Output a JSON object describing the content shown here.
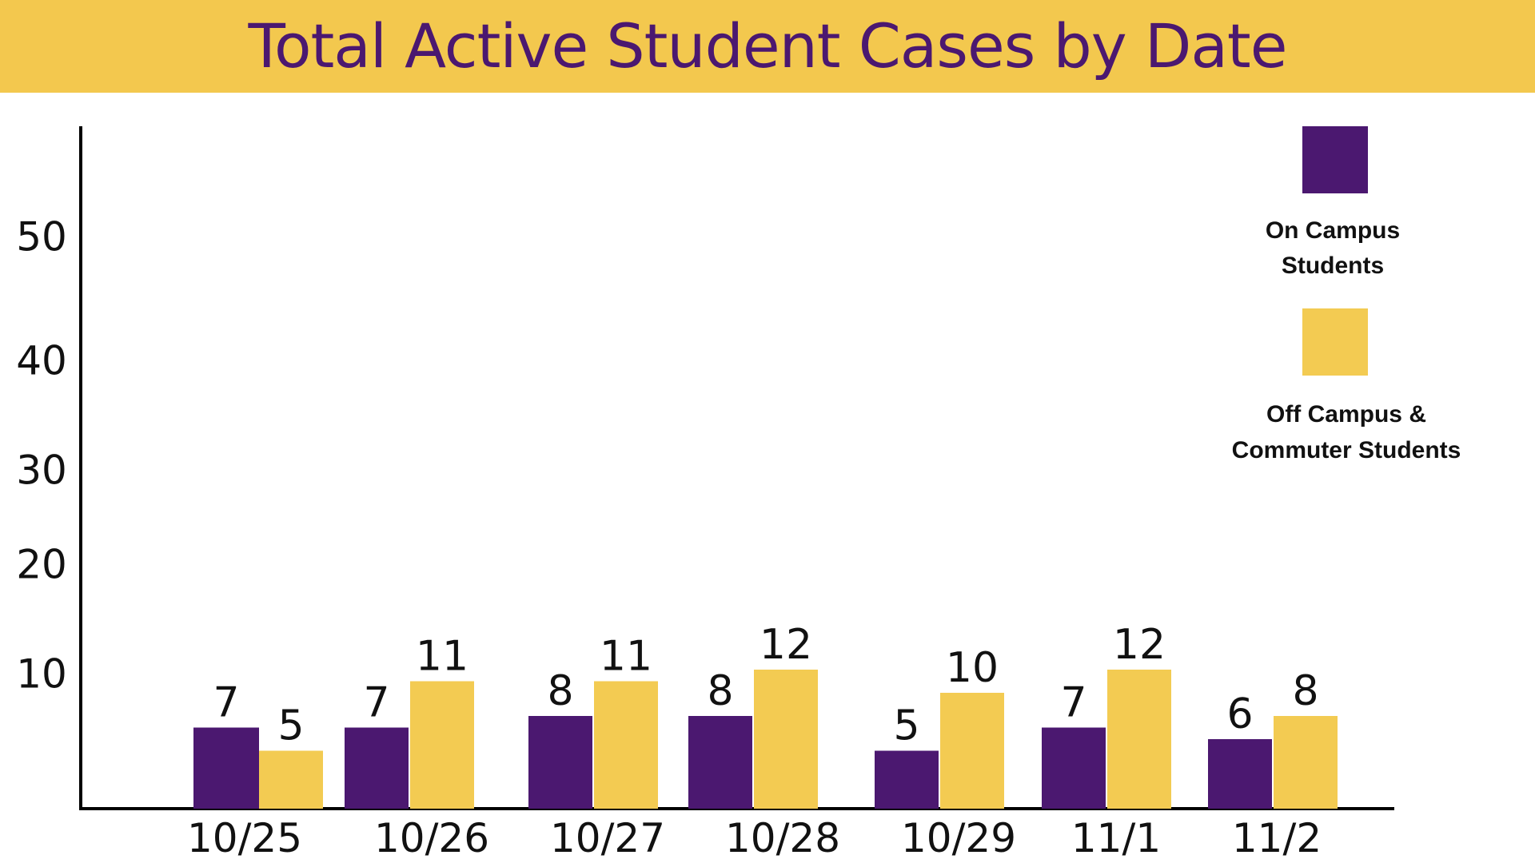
{
  "colors": {
    "banner": "#F3C84E",
    "title": "#4B1870",
    "on_campus": "#4B1870",
    "off_campus": "#F3CB52",
    "axis": "#000000"
  },
  "chart_data": {
    "type": "bar",
    "title": "Total Active Student Cases by Date",
    "xlabel": "",
    "ylabel": "",
    "categories": [
      "10/25",
      "10/26",
      "10/27",
      "10/28",
      "10/29",
      "11/1",
      "11/2"
    ],
    "series": [
      {
        "name": "On Campus Students",
        "legend_lines": [
          "On Campus",
          "Students"
        ],
        "color": "#4B1870",
        "values": [
          7,
          7,
          8,
          8,
          5,
          7,
          6
        ]
      },
      {
        "name": "Off Campus & Commuter Students",
        "legend_lines": [
          "Off Campus &",
          "Commuter Students"
        ],
        "color": "#F3CB52",
        "values": [
          5,
          11,
          11,
          12,
          10,
          12,
          8
        ]
      }
    ],
    "y_ticks": [
      10,
      20,
      30,
      40,
      50
    ],
    "ylim": [
      0,
      60
    ],
    "grid": false,
    "legend_position": "top-right",
    "data_labels": true
  }
}
